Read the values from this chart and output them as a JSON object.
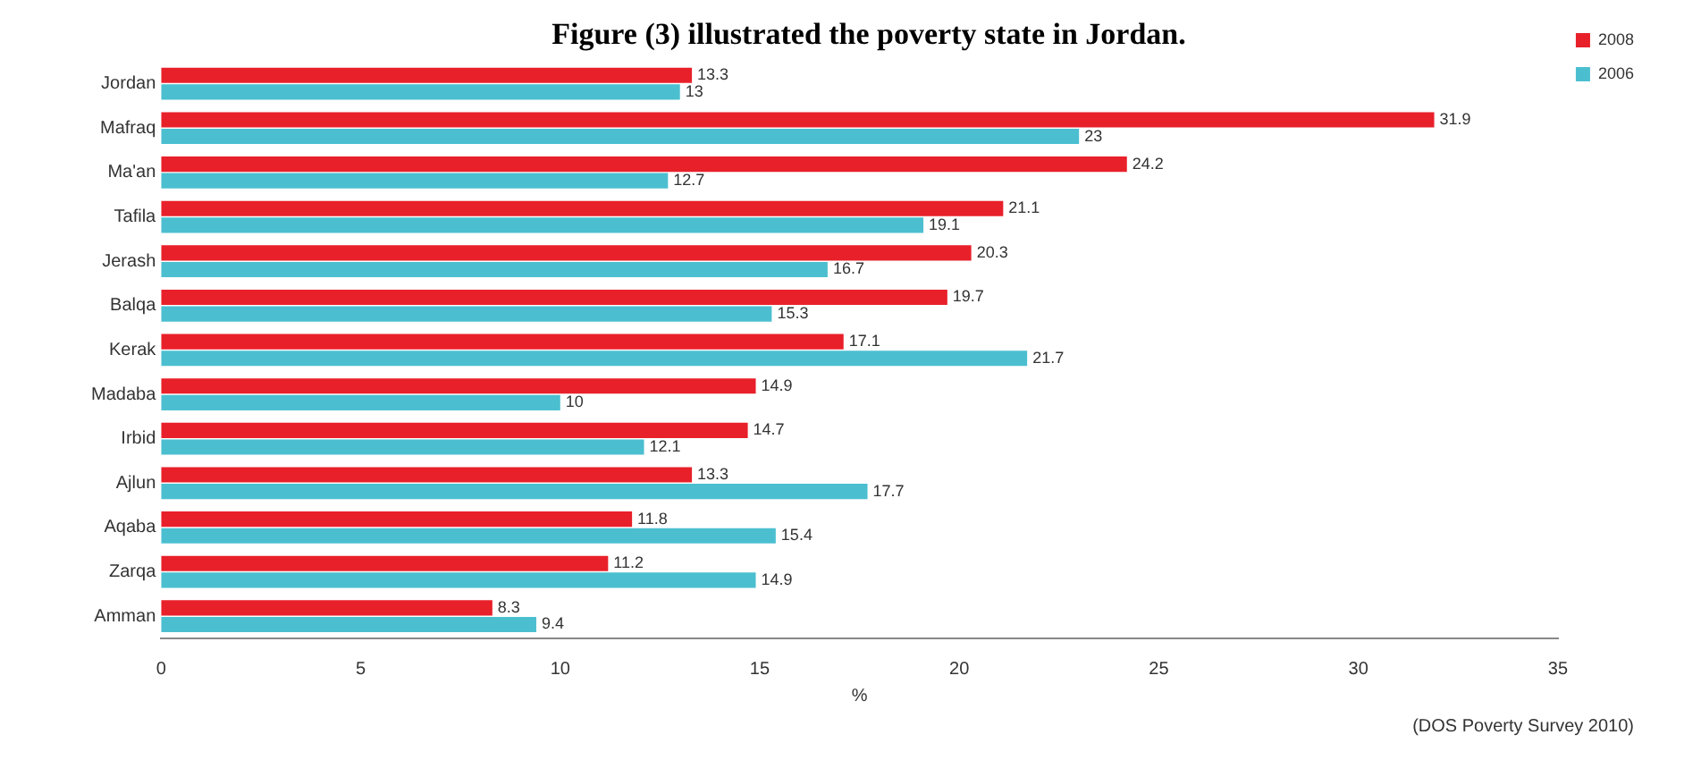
{
  "chart_data": {
    "type": "bar",
    "orientation": "horizontal",
    "title": "Figure (3) illustrated the poverty state in Jordan.",
    "xlabel": "%",
    "annotations": [
      "(DOS Poverty Survey 2010)"
    ],
    "categories": [
      "Jordan",
      "Mafraq",
      "Ma'an",
      "Tafila",
      "Jerash",
      "Balqa",
      "Kerak",
      "Madaba",
      "Irbid",
      "Ajlun",
      "Aqaba",
      "Zarqa",
      "Amman"
    ],
    "series": [
      {
        "name": "2008",
        "color": "#e8202a",
        "values": [
          13.3,
          31.9,
          24.2,
          21.1,
          20.3,
          19.7,
          17.1,
          14.9,
          14.7,
          13.3,
          11.8,
          11.2,
          8.3
        ]
      },
      {
        "name": "2006",
        "color": "#4bbfd0",
        "values": [
          13,
          23,
          12.7,
          19.1,
          16.7,
          15.3,
          21.7,
          10,
          12.1,
          17.7,
          15.4,
          14.9,
          9.4
        ]
      }
    ],
    "xlim": [
      0,
      35
    ],
    "xticks": [
      0,
      5,
      10,
      15,
      20,
      25,
      30,
      35
    ],
    "grid": false,
    "legend": "right",
    "data_labels": true
  }
}
